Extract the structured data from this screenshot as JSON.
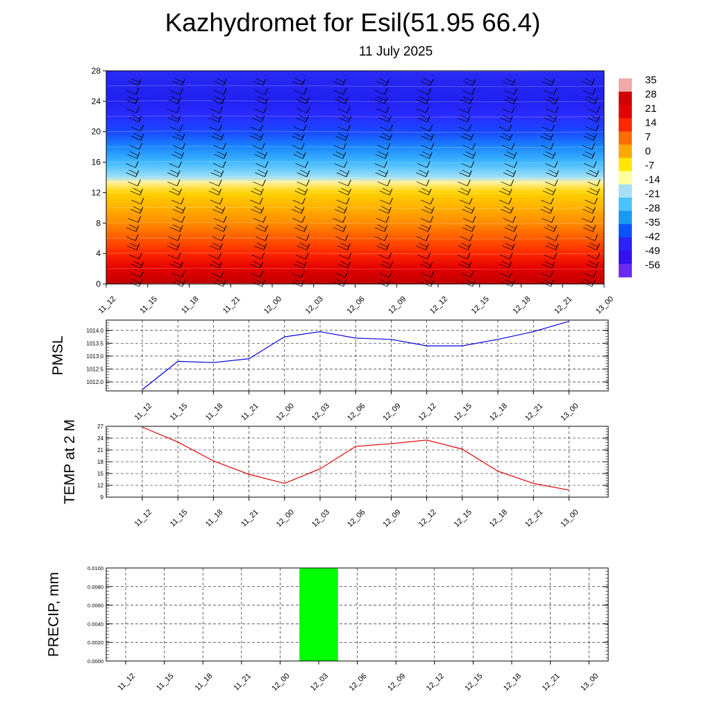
{
  "title": "Kazhydromet for Esil(51.95 66.4)",
  "subtitle": "11 July 2025",
  "chart_data": [
    {
      "type": "heatmap",
      "description_kind": "time-height cross section with wind barbs",
      "x_categories": [
        "11_12",
        "11_15",
        "11_18",
        "11_21",
        "12_00",
        "12_03",
        "12_06",
        "12_09",
        "12_12",
        "12_15",
        "12_18",
        "12_21",
        "13_00"
      ],
      "y_ticks": [
        0,
        4,
        8,
        12,
        16,
        20,
        24,
        28
      ],
      "ylim": [
        0,
        28
      ],
      "colorbar_labels": [
        "35",
        "28",
        "21",
        "14",
        "7",
        "0",
        "-7",
        "-14",
        "-21",
        "-28",
        "-35",
        "-42",
        "-49",
        "-56"
      ],
      "colorbar_colors": [
        "#f0a8a8",
        "#d10000",
        "#e80000",
        "#ff2600",
        "#ff6d00",
        "#ffa800",
        "#ffe600",
        "#ffff9e",
        "#a7e0f5",
        "#4cc2ff",
        "#169bf0",
        "#0a53ff",
        "#2a22f8",
        "#3310f0",
        "#6a2af0"
      ],
      "profile_levels": [
        0,
        2,
        4,
        6,
        8,
        10,
        12,
        13.4,
        14,
        16,
        18,
        20,
        22,
        24,
        26,
        28
      ],
      "profile_values": [
        30,
        27,
        22,
        17,
        13,
        8,
        2,
        -12,
        -20,
        -34,
        -45,
        -52,
        -55,
        -57,
        -56,
        -56
      ],
      "grid": false
    },
    {
      "type": "line",
      "ylabel": "PMSL",
      "x_categories": [
        "11_12",
        "11_15",
        "11_18",
        "11_21",
        "12_00",
        "12_03",
        "12_06",
        "12_09",
        "12_12",
        "12_15",
        "12_18",
        "12_21",
        "13_00"
      ],
      "values": [
        1011.7,
        1012.8,
        1012.75,
        1012.9,
        1013.75,
        1013.95,
        1013.7,
        1013.65,
        1013.4,
        1013.4,
        1013.65,
        1013.95,
        1014.35
      ],
      "y_tick_labels": [
        "1012.0",
        "1012.5",
        "1013.0",
        "1013.5",
        "1014.0"
      ],
      "y_ticks": [
        1012.0,
        1012.5,
        1013.0,
        1013.5,
        1014.0
      ],
      "ylim": [
        1011.65,
        1014.4
      ],
      "color": "#0000dd",
      "grid": true
    },
    {
      "type": "line",
      "ylabel": "TEMP at 2 M",
      "x_categories": [
        "11_12",
        "11_15",
        "11_18",
        "11_21",
        "12_00",
        "12_03",
        "12_06",
        "12_09",
        "12_12",
        "12_15",
        "12_18",
        "12_21",
        "13_00"
      ],
      "values": [
        26.8,
        23.0,
        18.2,
        14.8,
        12.5,
        16.2,
        21.9,
        22.6,
        23.5,
        21.2,
        15.6,
        12.5,
        10.8
      ],
      "y_tick_labels": [
        "9",
        "12",
        "15",
        "18",
        "21",
        "24",
        "27"
      ],
      "y_ticks": [
        9,
        12,
        15,
        18,
        21,
        24,
        27
      ],
      "ylim": [
        9,
        27
      ],
      "color": "#dd0000",
      "grid": true
    },
    {
      "type": "bar",
      "ylabel": "PRECIP, mm",
      "x_categories": [
        "11_12",
        "11_15",
        "11_18",
        "11_21",
        "12_00",
        "12_03",
        "12_06",
        "12_09",
        "12_12",
        "12_15",
        "12_18",
        "12_21",
        "13_00"
      ],
      "values": [
        0,
        0,
        0,
        0,
        0,
        0.01,
        0,
        0,
        0,
        0,
        0,
        0,
        0
      ],
      "y_tick_labels": [
        "0.0000",
        "0.0020",
        "0.0040",
        "0.0060",
        "0.0080",
        "0.0100"
      ],
      "y_ticks": [
        0,
        0.002,
        0.004,
        0.006,
        0.008,
        0.01
      ],
      "ylim": [
        0,
        0.01
      ],
      "color": "#00ff00",
      "grid": true
    }
  ]
}
